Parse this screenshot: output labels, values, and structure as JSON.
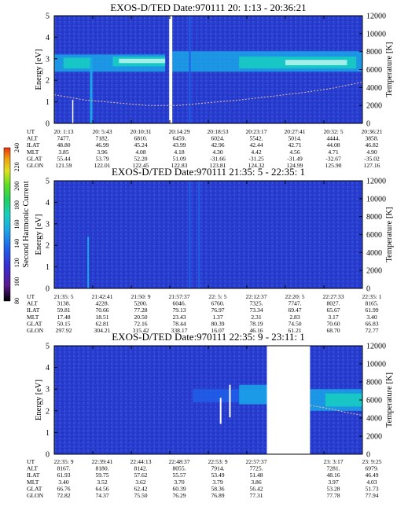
{
  "colorbar": {
    "label": "Second Harmonic Current",
    "ticks": [
      "80",
      "100",
      "120",
      "140",
      "160",
      "180",
      "200",
      "220",
      "240"
    ],
    "colors": [
      "#000000",
      "#5a1a8c",
      "#3a2bd0",
      "#1f5fe8",
      "#1aa6e8",
      "#18d0c0",
      "#20d060",
      "#60e020",
      "#e0e020",
      "#f0a010",
      "#f03010"
    ]
  },
  "chart_data": [
    {
      "type": "heatmap",
      "title": "EXOS-D/TED   Date:970111  20: 1:13 - 20:36:21",
      "ylabel": "Energy [eV]",
      "y2label": "Temperature [K]",
      "ylim": [
        0,
        5
      ],
      "y2lim": [
        0,
        12000
      ],
      "yticks": [
        "0",
        "1",
        "2",
        "3",
        "4",
        "5"
      ],
      "y2ticks": [
        "0",
        "2000",
        "4000",
        "6000",
        "8000",
        "10000",
        "12000"
      ],
      "table_labels": [
        "UT",
        "ALT",
        "ILAT",
        "MLT",
        "GLAT",
        "GLON"
      ],
      "columns": [
        [
          "20: 1:13",
          "7477.",
          "48.80",
          "3.85",
          "55.44",
          "121.59"
        ],
        [
          "20: 5:43",
          "7182.",
          "46.99",
          "3.96",
          "53.79",
          "122.01"
        ],
        [
          "20:10:31",
          "6810.",
          "45.24",
          "4.08",
          "52.20",
          "122.45"
        ],
        [
          "20:14:29",
          "6459.",
          "43.99",
          "4.18",
          "51.09",
          "122.83"
        ],
        [
          "20:18:53",
          "6024.",
          "42.96",
          "4.30",
          "-31.66",
          "123.81"
        ],
        [
          "20:23:17",
          "5542.",
          "42.44",
          "4.42",
          "-31.25",
          "124.32"
        ],
        [
          "20:27:41",
          "5014.",
          "42.71",
          "4.56",
          "-31.49",
          "124.99"
        ],
        [
          "20:32: 5",
          "4444.",
          "44.08",
          "4.71",
          "-32.67",
          "125.90"
        ],
        [
          "20:36:21",
          "3858.",
          "46.82",
          "4.90",
          "-35.02",
          "127.16"
        ]
      ]
    },
    {
      "type": "heatmap",
      "title": "EXOS-D/TED   Date:970111  21:35: 5 - 22:35: 1",
      "ylabel": "Energy [eV]",
      "y2label": "Temperature [K]",
      "ylim": [
        0,
        5
      ],
      "y2lim": [
        0,
        12000
      ],
      "yticks": [
        "0",
        "1",
        "2",
        "3",
        "4",
        "5"
      ],
      "y2ticks": [
        "0",
        "2000",
        "4000",
        "6000",
        "8000",
        "10000",
        "12000"
      ],
      "table_labels": [
        "UT",
        "ALT",
        "ILAT",
        "MLT",
        "GLAT",
        "GLON"
      ],
      "columns": [
        [
          "21:35: 5",
          "3138.",
          "59.81",
          "17.48",
          "50.15",
          "297.92"
        ],
        [
          "21:42:41",
          "4228.",
          "70.66",
          "18.51",
          "62.81",
          "304.21"
        ],
        [
          "21:50: 9",
          "5200.",
          "77.28",
          "20.50",
          "72.16",
          "315.42"
        ],
        [
          "21:57:37",
          "6046.",
          "79.13",
          "23.43",
          "78.44",
          "338.17"
        ],
        [
          "22: 5: 5",
          "6760.",
          "76.97",
          "1.37",
          "80.39",
          "16.07"
        ],
        [
          "22:12:37",
          "7325.",
          "73.34",
          "2.31",
          "78.19",
          "46.16"
        ],
        [
          "22:20: 5",
          "7747.",
          "69.47",
          "2.83",
          "74.50",
          "61.21"
        ],
        [
          "22:27:33",
          "8027.",
          "65.67",
          "3.17",
          "70.60",
          "68.70"
        ],
        [
          "22:35: 1",
          "8165.",
          "61.99",
          "3.40",
          "66.83",
          "72.77"
        ]
      ]
    },
    {
      "type": "heatmap",
      "title": "EXOS-D/TED   Date:970111  22:35: 9 - 23:11: 1",
      "ylabel": "Energy [eV]",
      "y2label": "Temperature [K]",
      "ylim": [
        0,
        5
      ],
      "y2lim": [
        0,
        12000
      ],
      "yticks": [
        "0",
        "1",
        "2",
        "3",
        "4",
        "5"
      ],
      "y2ticks": [
        "0",
        "2000",
        "4000",
        "6000",
        "8000",
        "10000",
        "12000"
      ],
      "table_labels": [
        "UT",
        "ALT",
        "ILAT",
        "MLT",
        "GLAT",
        "GLON"
      ],
      "columns": [
        [
          "22:35: 9",
          "8167.",
          "61.93",
          "3.40",
          "66.76",
          "72.82"
        ],
        [
          "22:39:41",
          "8180.",
          "59.75",
          "3.52",
          "64.56",
          "74.37"
        ],
        [
          "22:44:13",
          "8142.",
          "57.62",
          "3.62",
          "62.42",
          "75.50"
        ],
        [
          "22:48:37",
          "8055.",
          "55.57",
          "3.70",
          "60.39",
          "76.29"
        ],
        [
          "22:53: 9",
          "7914.",
          "53.49",
          "3.79",
          "58.36",
          "76.89"
        ],
        [
          "22:57:37",
          "7725.",
          "51.48",
          "3.86",
          "56.42",
          "77.31"
        ],
        [
          "",
          "",
          "",
          "",
          "",
          ""
        ],
        [
          "23: 3:17",
          "7281.",
          "48.16",
          "3.97",
          "53.28",
          "77.78"
        ],
        [
          "23: 9:25",
          "6979.",
          "46.49",
          "4.03",
          "51.73",
          "77.94"
        ]
      ]
    }
  ]
}
